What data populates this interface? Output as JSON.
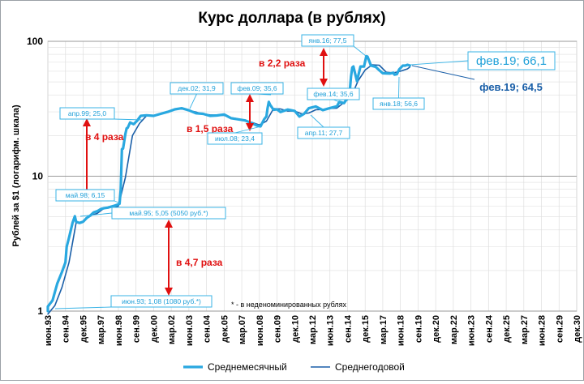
{
  "chart_data": {
    "type": "line",
    "title": "Курс доллара (в рублях)",
    "ylabel": "Рублей за $1 (логарифм. шкала)",
    "xlabel": "",
    "yscale": "log",
    "ylim": [
      1,
      100
    ],
    "yticks": [
      "1",
      "10",
      "100"
    ],
    "xlim": [
      "1993-06",
      "2030-12"
    ],
    "xticks": [
      {
        "label": "июн.93",
        "date": "1993-06"
      },
      {
        "label": "сен.94",
        "date": "1994-09"
      },
      {
        "label": "дек.95",
        "date": "1995-12"
      },
      {
        "label": "мар.97",
        "date": "1997-03"
      },
      {
        "label": "июн.98",
        "date": "1998-06"
      },
      {
        "label": "сен.99",
        "date": "1999-09"
      },
      {
        "label": "дек.00",
        "date": "2000-12"
      },
      {
        "label": "мар.02",
        "date": "2002-03"
      },
      {
        "label": "июн.03",
        "date": "2003-06"
      },
      {
        "label": "сен.04",
        "date": "2004-09"
      },
      {
        "label": "дек.05",
        "date": "2005-12"
      },
      {
        "label": "мар.07",
        "date": "2007-03"
      },
      {
        "label": "июн.08",
        "date": "2008-06"
      },
      {
        "label": "сен.09",
        "date": "2009-09"
      },
      {
        "label": "дек.10",
        "date": "2010-12"
      },
      {
        "label": "мар.12",
        "date": "2012-03"
      },
      {
        "label": "июн.13",
        "date": "2013-06"
      },
      {
        "label": "сен.14",
        "date": "2014-09"
      },
      {
        "label": "дек.15",
        "date": "2015-12"
      },
      {
        "label": "мар.17",
        "date": "2017-03"
      },
      {
        "label": "июн.18",
        "date": "2018-06"
      },
      {
        "label": "сен.19",
        "date": "2019-09"
      },
      {
        "label": "дек.20",
        "date": "2020-12"
      },
      {
        "label": "мар.22",
        "date": "2022-03"
      },
      {
        "label": "июн.23",
        "date": "2023-06"
      },
      {
        "label": "сен.24",
        "date": "2024-09"
      },
      {
        "label": "дек.25",
        "date": "2025-12"
      },
      {
        "label": "мар.27",
        "date": "2027-03"
      },
      {
        "label": "июн.28",
        "date": "2028-06"
      },
      {
        "label": "сен.29",
        "date": "2029-09"
      },
      {
        "label": "дек.30",
        "date": "2030-12"
      }
    ],
    "grid": true,
    "legend_position": "bottom",
    "series": [
      {
        "name": "Среднемесячный",
        "color": "#29a8e0",
        "points": [
          [
            "1993-06",
            1.0
          ],
          [
            "1993-06",
            1.08
          ],
          [
            "1993-10",
            1.2
          ],
          [
            "1994-02",
            1.6
          ],
          [
            "1994-06",
            1.95
          ],
          [
            "1994-09",
            2.3
          ],
          [
            "1994-10",
            3.0
          ],
          [
            "1994-12",
            3.5
          ],
          [
            "1995-03",
            4.5
          ],
          [
            "1995-05",
            5.05
          ],
          [
            "1995-06",
            4.6
          ],
          [
            "1995-09",
            4.5
          ],
          [
            "1995-12",
            4.6
          ],
          [
            "1996-03",
            4.9
          ],
          [
            "1996-06",
            5.1
          ],
          [
            "1996-09",
            5.4
          ],
          [
            "1996-12",
            5.5
          ],
          [
            "1997-03",
            5.7
          ],
          [
            "1997-06",
            5.8
          ],
          [
            "1997-09",
            5.85
          ],
          [
            "1997-12",
            5.95
          ],
          [
            "1998-03",
            6.05
          ],
          [
            "1998-05",
            6.15
          ],
          [
            "1998-07",
            6.25
          ],
          [
            "1998-08",
            7.9
          ],
          [
            "1998-09",
            15.9
          ],
          [
            "1998-10",
            16.0
          ],
          [
            "1998-12",
            20.6
          ],
          [
            "1999-01",
            22.6
          ],
          [
            "1999-02",
            22.9
          ],
          [
            "1999-04",
            25.0
          ],
          [
            "1999-07",
            24.3
          ],
          [
            "1999-10",
            25.8
          ],
          [
            "2000-01",
            28.0
          ],
          [
            "2000-06",
            28.3
          ],
          [
            "2000-12",
            28.0
          ],
          [
            "2001-06",
            29.0
          ],
          [
            "2001-12",
            30.0
          ],
          [
            "2002-06",
            31.3
          ],
          [
            "2002-12",
            31.9
          ],
          [
            "2003-06",
            30.8
          ],
          [
            "2003-12",
            29.3
          ],
          [
            "2004-06",
            29.0
          ],
          [
            "2004-12",
            28.0
          ],
          [
            "2005-06",
            28.2
          ],
          [
            "2005-12",
            28.7
          ],
          [
            "2006-06",
            26.9
          ],
          [
            "2006-12",
            26.4
          ],
          [
            "2007-06",
            25.9
          ],
          [
            "2007-12",
            24.6
          ],
          [
            "2008-04",
            23.7
          ],
          [
            "2008-07",
            23.4
          ],
          [
            "2008-10",
            26.4
          ],
          [
            "2008-12",
            27.8
          ],
          [
            "2009-01",
            32.0
          ],
          [
            "2009-02",
            35.6
          ],
          [
            "2009-03",
            34.0
          ],
          [
            "2009-06",
            31.1
          ],
          [
            "2009-09",
            31.3
          ],
          [
            "2009-12",
            29.9
          ],
          [
            "2010-06",
            31.2
          ],
          [
            "2010-12",
            30.5
          ],
          [
            "2011-04",
            27.7
          ],
          [
            "2011-08",
            29.0
          ],
          [
            "2011-12",
            31.9
          ],
          [
            "2012-06",
            32.9
          ],
          [
            "2012-12",
            30.9
          ],
          [
            "2013-06",
            32.0
          ],
          [
            "2013-12",
            33.0
          ],
          [
            "2014-02",
            35.6
          ],
          [
            "2014-06",
            34.8
          ],
          [
            "2014-09",
            38.0
          ],
          [
            "2014-11",
            44.0
          ],
          [
            "2014-12",
            55.0
          ],
          [
            "2015-01",
            64.0
          ],
          [
            "2015-02",
            65.0
          ],
          [
            "2015-05",
            50.7
          ],
          [
            "2015-08",
            65.0
          ],
          [
            "2015-11",
            65.0
          ],
          [
            "2016-01",
            77.5
          ],
          [
            "2016-02",
            77.0
          ],
          [
            "2016-05",
            66.0
          ],
          [
            "2016-09",
            64.6
          ],
          [
            "2016-12",
            61.0
          ],
          [
            "2017-03",
            58.0
          ],
          [
            "2017-06",
            57.8
          ],
          [
            "2017-09",
            57.7
          ],
          [
            "2017-12",
            58.5
          ],
          [
            "2018-01",
            56.6
          ],
          [
            "2018-03",
            57.0
          ],
          [
            "2018-05",
            62.0
          ],
          [
            "2018-08",
            66.0
          ],
          [
            "2018-10",
            66.0
          ],
          [
            "2018-12",
            67.0
          ],
          [
            "2019-02",
            66.1
          ]
        ]
      },
      {
        "name": "Среднегодовой",
        "color": "#1a5fa8",
        "points": [
          [
            "1993-06",
            0.95
          ],
          [
            "1993-12",
            1.1
          ],
          [
            "1994-06",
            1.5
          ],
          [
            "1994-12",
            2.3
          ],
          [
            "1995-06",
            4.5
          ],
          [
            "1995-12",
            4.6
          ],
          [
            "1996-06",
            5.1
          ],
          [
            "1996-12",
            5.3
          ],
          [
            "1997-06",
            5.8
          ],
          [
            "1997-12",
            5.9
          ],
          [
            "1998-06",
            6.0
          ],
          [
            "1998-12",
            9.8
          ],
          [
            "1999-06",
            20.0
          ],
          [
            "1999-12",
            24.6
          ],
          [
            "2000-06",
            28.1
          ],
          [
            "2000-12",
            28.2
          ],
          [
            "2001-06",
            29.2
          ],
          [
            "2001-12",
            30.1
          ],
          [
            "2002-06",
            31.4
          ],
          [
            "2002-12",
            31.5
          ],
          [
            "2003-06",
            30.7
          ],
          [
            "2003-12",
            29.9
          ],
          [
            "2004-06",
            28.8
          ],
          [
            "2004-12",
            28.5
          ],
          [
            "2005-06",
            28.3
          ],
          [
            "2005-12",
            28.2
          ],
          [
            "2006-06",
            27.2
          ],
          [
            "2006-12",
            26.6
          ],
          [
            "2007-06",
            25.6
          ],
          [
            "2007-12",
            25.0
          ],
          [
            "2008-06",
            24.0
          ],
          [
            "2008-12",
            25.6
          ],
          [
            "2009-06",
            31.7
          ],
          [
            "2009-12",
            31.5
          ],
          [
            "2010-06",
            30.4
          ],
          [
            "2010-12",
            30.4
          ],
          [
            "2011-06",
            29.0
          ],
          [
            "2011-12",
            29.4
          ],
          [
            "2012-06",
            31.1
          ],
          [
            "2012-12",
            31.2
          ],
          [
            "2013-06",
            31.8
          ],
          [
            "2013-12",
            32.0
          ],
          [
            "2014-06",
            35.2
          ],
          [
            "2014-12",
            38.6
          ],
          [
            "2015-06",
            51.0
          ],
          [
            "2015-12",
            61.3
          ],
          [
            "2016-06",
            67.0
          ],
          [
            "2016-12",
            66.5
          ],
          [
            "2017-06",
            59.0
          ],
          [
            "2017-12",
            58.3
          ],
          [
            "2018-06",
            60.0
          ],
          [
            "2018-12",
            62.5
          ],
          [
            "2019-02",
            64.5
          ]
        ]
      }
    ],
    "annotations": [
      {
        "text": "июн.93; 1,08 (1080 руб.*)",
        "series": 0
      },
      {
        "text": "май.95; 5,05 (5050 руб.*)",
        "series": 0
      },
      {
        "text": "май.98; 6,15",
        "series": 0
      },
      {
        "text": "апр.99; 25,0",
        "series": 0
      },
      {
        "text": "дек.02; 31,9",
        "series": 0
      },
      {
        "text": "июл.08; 23,4",
        "series": 0
      },
      {
        "text": "фев.09; 35,6",
        "series": 0
      },
      {
        "text": "апр.11; 27,7",
        "series": 0
      },
      {
        "text": "фев.14; 35,6",
        "series": 0
      },
      {
        "text": "янв.16; 77,5",
        "series": 0
      },
      {
        "text": "янв.18; 56,6",
        "series": 0
      },
      {
        "text": "фев.19; 66,1",
        "series": 0
      },
      {
        "text": "фев.19; 64,5",
        "series": 1
      }
    ],
    "ratio_labels": [
      "в 4 раза",
      "в 1,5 раза",
      "в 2,2 раза",
      "в 4,7 раза"
    ],
    "footnote": "* - в неденоминированных рублях"
  }
}
